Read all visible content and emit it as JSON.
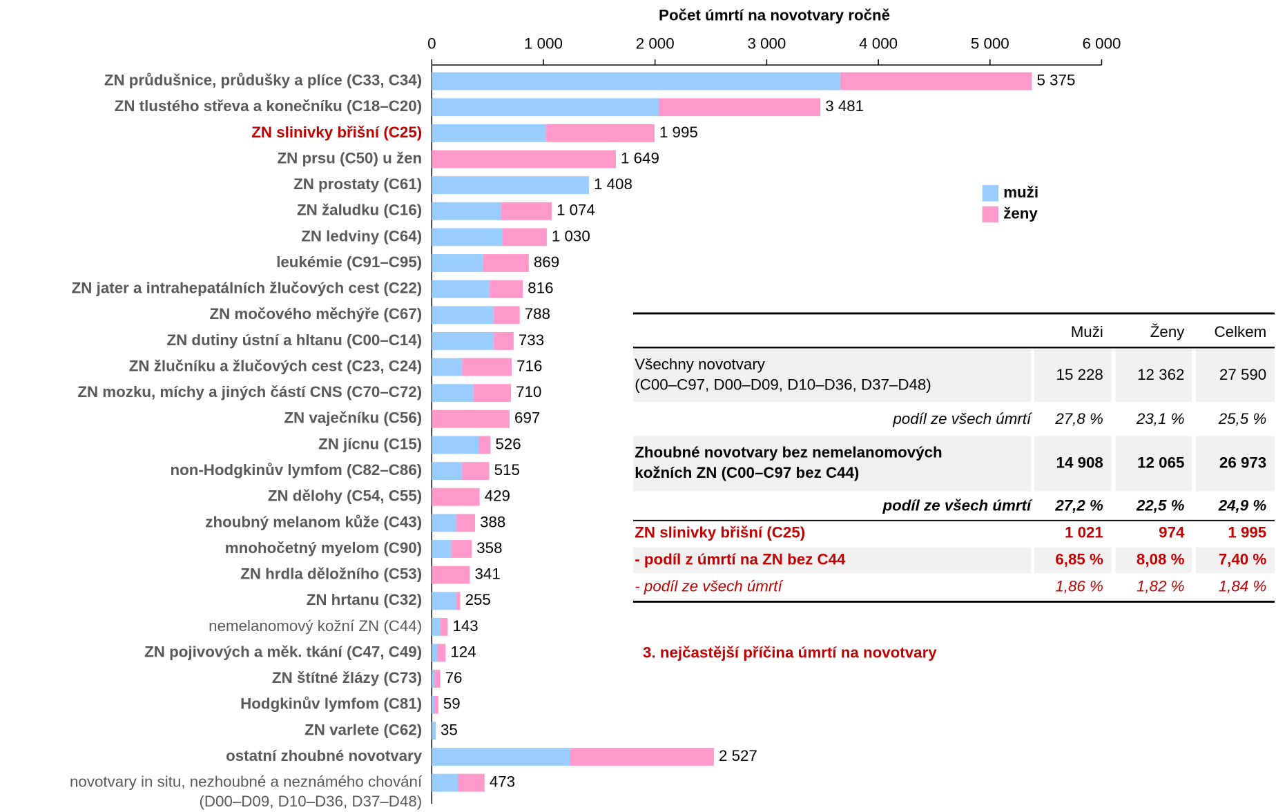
{
  "chart_data": {
    "type": "stacked-bar-horizontal",
    "title": "Počet úmrtí na novotvary ročně",
    "categories": [
      "ZN průdušnice, průdušky a plíce (C33, C34)",
      "ZN tlustého střeva a konečníku (C18–C20)",
      "ZN slinivky břišní (C25)",
      "ZN prsu (C50) u žen",
      "ZN prostaty (C61)",
      "ZN žaludku (C16)",
      "ZN ledviny (C64)",
      "leukémie (C91–C95)",
      "ZN jater a intrahepatálních žlučových cest (C22)",
      "ZN močového měchýře (C67)",
      "ZN dutiny ústní a hltanu (C00–C14)",
      "ZN žlučníku a žlučových cest (C23, C24)",
      "ZN mozku, míchy a jiných částí CNS (C70–C72)",
      "ZN vaječníku (C56)",
      "ZN jícnu (C15)",
      "non-Hodgkinův lymfom (C82–C86)",
      "ZN dělohy (C54, C55)",
      "zhoubný melanom kůže (C43)",
      "mnohočetný myelom (C90)",
      "ZN hrdla děložního (C53)",
      "ZN hrtanu (C32)",
      "nemelanomový kožní ZN (C44)",
      "ZN pojivových a měk. tkání (C47, C49)",
      "ZN štítné žlázy (C73)",
      "Hodgkinův lymfom (C81)",
      "ZN varlete (C62)",
      "ostatní zhoubné novotvary",
      [
        "novotvary in situ, nezhoubné a neznámého chování",
        "(D00–D09, D10–D36, D37–D48)"
      ]
    ],
    "series": [
      {
        "name": "muži",
        "color": "#99ccff",
        "values": [
          3658,
          2036,
          1021,
          0,
          1408,
          618,
          633,
          458,
          516,
          553,
          553,
          269,
          371,
          0,
          422,
          269,
          0,
          218,
          175,
          0,
          218,
          73,
          51,
          22,
          22,
          35,
          1236,
          233
        ]
      },
      {
        "name": "ženy",
        "color": "#ff99cc",
        "values": [
          1717,
          1445,
          974,
          1649,
          0,
          456,
          397,
          411,
          300,
          235,
          180,
          447,
          339,
          697,
          104,
          246,
          429,
          170,
          183,
          341,
          37,
          70,
          73,
          54,
          37,
          0,
          1291,
          240
        ]
      }
    ],
    "totals": [
      5375,
      3481,
      1995,
      1649,
      1408,
      1074,
      1030,
      869,
      816,
      788,
      733,
      716,
      710,
      697,
      526,
      515,
      429,
      388,
      358,
      341,
      255,
      143,
      124,
      76,
      59,
      35,
      2527,
      473
    ],
    "total_labels": [
      "5 375",
      "3 481",
      "1 995",
      "1 649",
      "1 408",
      "1 074",
      "1 030",
      "869",
      "816",
      "788",
      "733",
      "716",
      "710",
      "697",
      "526",
      "515",
      "429",
      "388",
      "358",
      "341",
      "255",
      "143",
      "124",
      "76",
      "59",
      "35",
      "2 527",
      "473"
    ],
    "xlim": [
      0,
      6000
    ],
    "xticks": [
      0,
      {
        "value": 1000,
        "label": "1 000"
      },
      {
        "value": 2000,
        "label": "2 000"
      },
      {
        "value": 3000,
        "label": "3 000"
      },
      {
        "value": 4000,
        "label": "4 000"
      },
      {
        "value": 5000,
        "label": "5 000"
      },
      {
        "value": 6000,
        "label": "6 000"
      }
    ],
    "legend": "right"
  },
  "table": {
    "header": [
      "Muži",
      "Ženy",
      "Celkem"
    ],
    "rows": [
      {
        "label": [
          "Všechny novotvary",
          "(C00–C97, D00–D09, D10–D36, D37–D48)"
        ],
        "cells": [
          "15 228",
          "12 362",
          "27 590"
        ]
      },
      {
        "label": [
          "podíl ze všech úmrtí"
        ],
        "cells": [
          "27,8 %",
          "23,1 %",
          "25,5 %"
        ]
      },
      {
        "label": [
          "Zhoubné novotvary bez nemelanomových",
          "kožních ZN (C00–C97 bez C44)"
        ],
        "cells": [
          "14 908",
          "12 065",
          "26 973"
        ]
      },
      {
        "label": [
          "podíl ze všech úmrtí"
        ],
        "cells": [
          "27,2 %",
          "22,5 %",
          "24,9 %"
        ]
      },
      {
        "label": [
          "ZN slinivky břišní (C25)"
        ],
        "cells": [
          "1 021",
          "974",
          "1 995"
        ]
      },
      {
        "label": [
          "- podíl z úmrtí na ZN bez C44"
        ],
        "cells": [
          "6,85 %",
          "8,08 %",
          "7,40 %"
        ]
      },
      {
        "label": [
          "- podíl ze všech úmrtí"
        ],
        "cells": [
          "1,86 %",
          "1,82 %",
          "1,84 %"
        ]
      }
    ]
  },
  "headline": "3. nejčastější příčina úmrtí na novotvary"
}
